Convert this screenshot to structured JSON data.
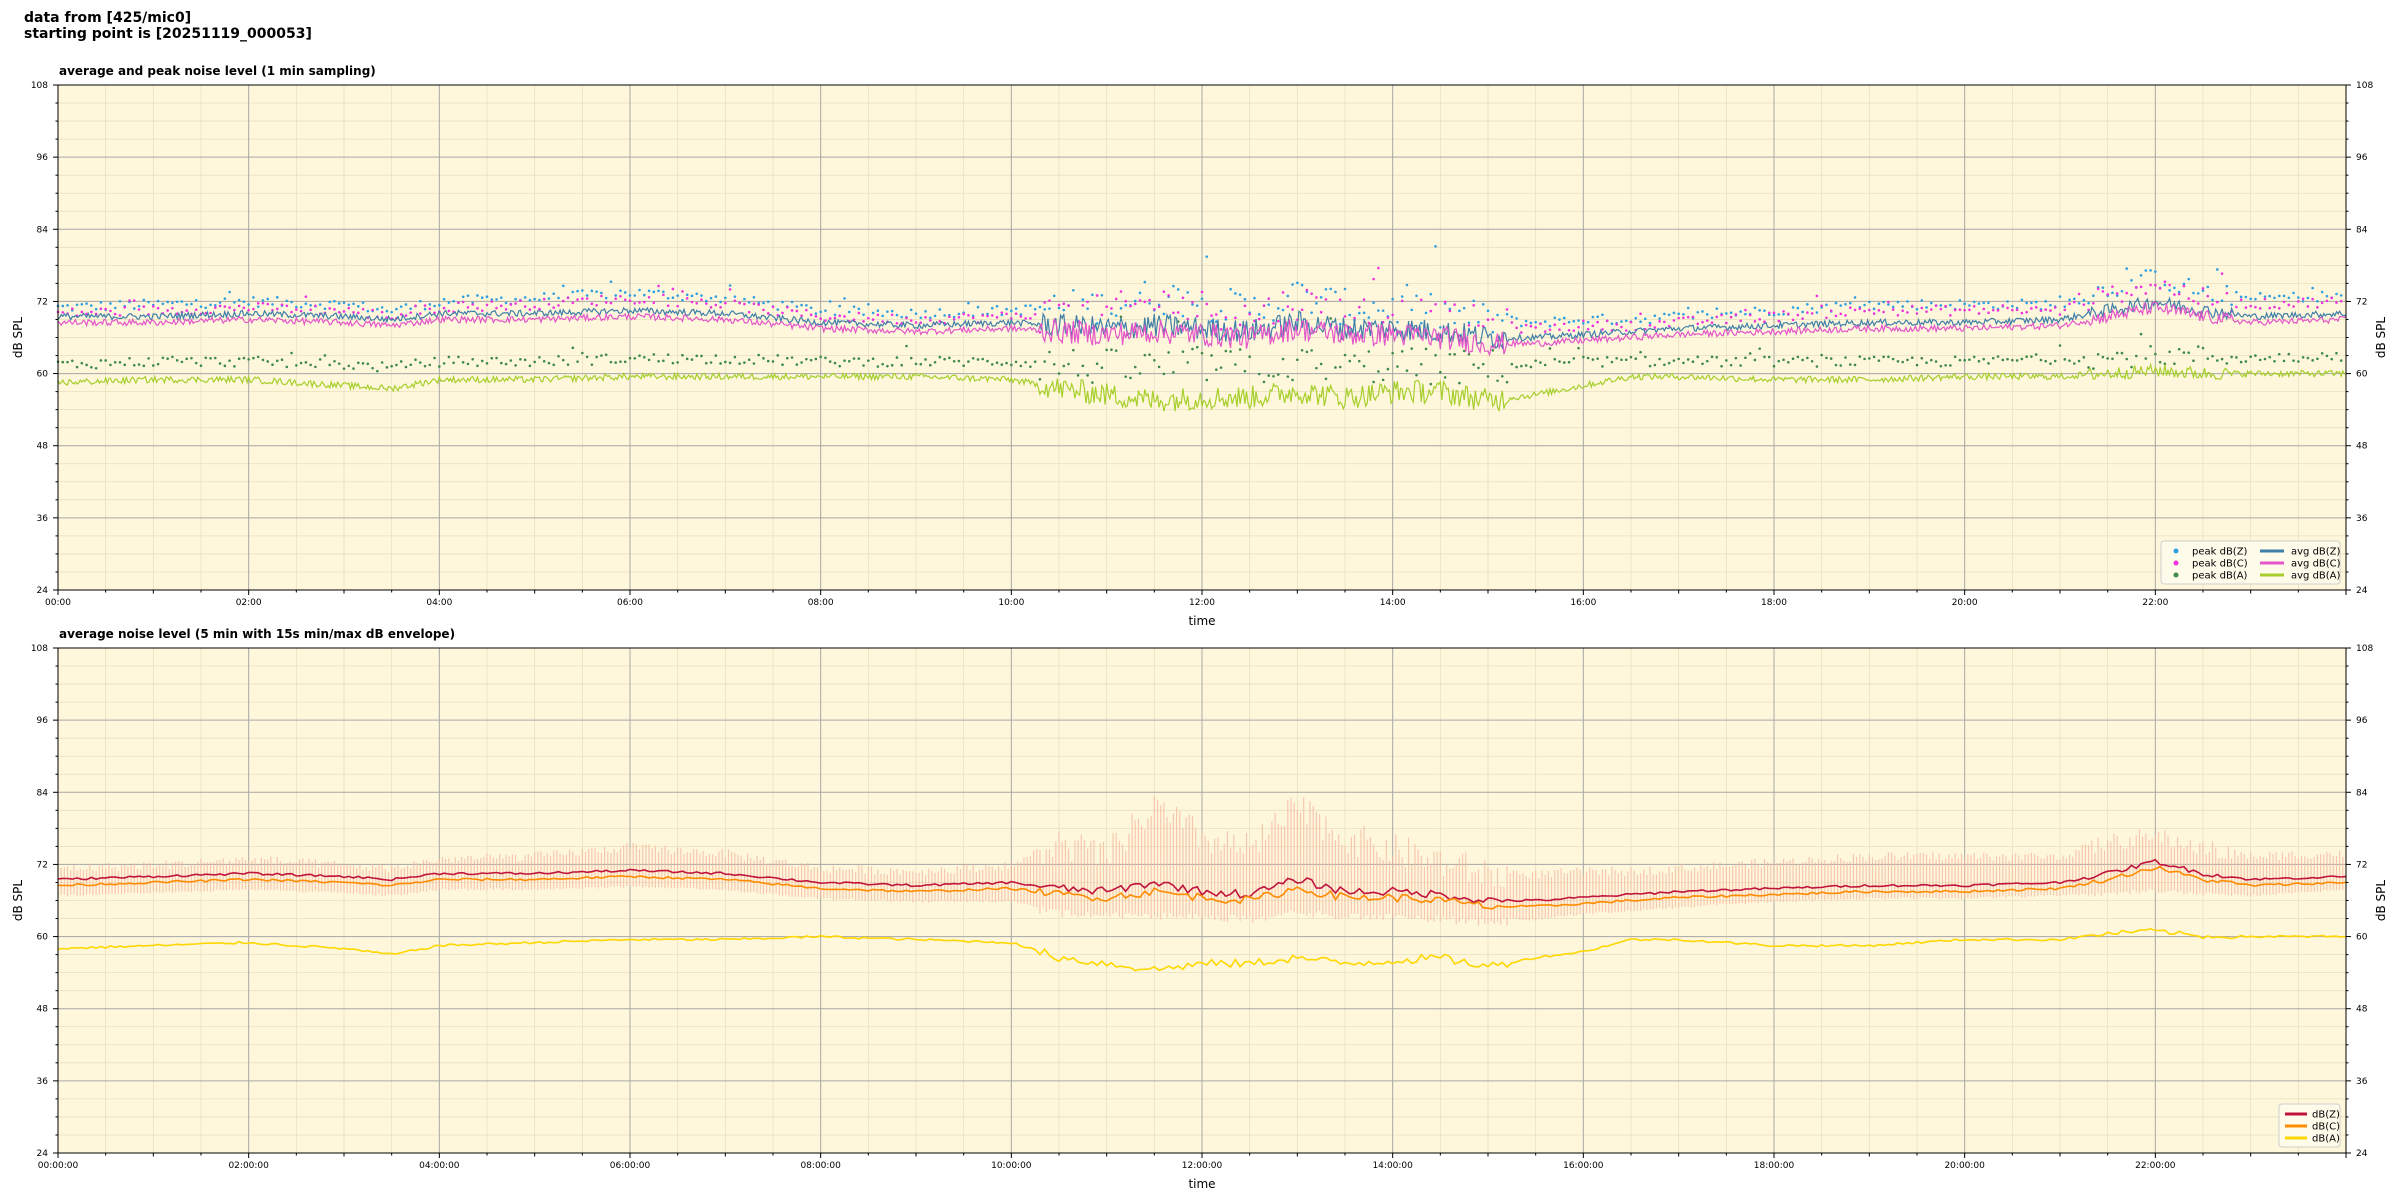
{
  "header": {
    "line1": "data from [425/mic0]",
    "line2": "starting point is [20251119_000053]"
  },
  "colors": {
    "plot_bg": "#fff7dc",
    "grid_major": "#a9a9a9",
    "grid_minor": "#e8dfbd",
    "peak_z": "#2e9fe0",
    "peak_c": "#ee33dd",
    "peak_a": "#3d8a4a",
    "avg_z": "#3f7fa8",
    "avg_c": "#e455c9",
    "avg_a": "#a6cf2c",
    "env": "#f3b8a0",
    "line_z": "#c0143c",
    "line_c": "#ff8c00",
    "line_a": "#ffd700"
  },
  "chart_data": [
    {
      "type": "scatter",
      "title": "average and peak noise level (1 min sampling)",
      "xlabel": "time",
      "ylabel": "dB SPL",
      "ylabel_right": "dB SPL",
      "xlim": [
        0,
        24
      ],
      "ylim": [
        24,
        108
      ],
      "yticks": [
        24,
        36,
        48,
        60,
        72,
        84,
        96,
        108
      ],
      "xtick_labels": [
        "00:00",
        "02:00",
        "04:00",
        "06:00",
        "08:00",
        "10:00",
        "12:00",
        "14:00",
        "16:00",
        "18:00",
        "20:00",
        "22:00"
      ],
      "grid": true,
      "legend_position": "lower right",
      "x_hours": [
        0,
        1,
        2,
        3,
        3.5,
        4,
        5,
        6,
        7,
        8,
        9,
        10,
        10.5,
        11,
        11.5,
        12,
        12.5,
        13,
        13.5,
        14,
        14.5,
        15,
        15.5,
        16,
        16.5,
        17,
        18,
        19,
        20,
        21,
        21.5,
        22,
        22.5,
        23,
        24
      ],
      "series": [
        {
          "name": "peak dB(Z)",
          "kind": "points",
          "color_key": "peak_z",
          "values": [
            71,
            71.5,
            72,
            71.5,
            70.5,
            72,
            72.5,
            73.5,
            72.5,
            70.5,
            70,
            70.5,
            71,
            71,
            73,
            72,
            70.5,
            73,
            71,
            71,
            70,
            69,
            68.5,
            69,
            69,
            69.5,
            70.5,
            71.5,
            71.5,
            71.5,
            74,
            76,
            73.5,
            72.5,
            73
          ]
        },
        {
          "name": "peak dB(C)",
          "kind": "points",
          "color_key": "peak_c",
          "values": [
            70,
            70.5,
            71,
            70.5,
            69.5,
            71,
            71.5,
            72.5,
            71.5,
            69.5,
            69,
            69.5,
            70,
            70,
            72,
            71,
            69.5,
            72,
            70,
            70,
            69,
            68,
            67.5,
            68,
            68,
            68.5,
            69.5,
            70.5,
            70.5,
            70.5,
            73,
            75,
            72.5,
            71.5,
            72
          ]
        },
        {
          "name": "peak dB(A)",
          "kind": "points",
          "color_key": "peak_a",
          "values": [
            61.5,
            62,
            62,
            61.5,
            61,
            62,
            62,
            62.5,
            62.5,
            62,
            62,
            62,
            61.5,
            61,
            61,
            61.5,
            61,
            61.5,
            61,
            61.5,
            61,
            61,
            61.5,
            62,
            62,
            62,
            62,
            62,
            62,
            62.5,
            62.5,
            63,
            63,
            62.5,
            63
          ]
        },
        {
          "name": "avg dB(Z)",
          "kind": "line",
          "color_key": "avg_z",
          "values": [
            69.5,
            69.5,
            70,
            69.5,
            69,
            70,
            70,
            70.5,
            70,
            68.5,
            68,
            68.5,
            68,
            67.5,
            68,
            67.5,
            67,
            68.5,
            67.5,
            67.5,
            67,
            66,
            66,
            66.5,
            67,
            67.5,
            68,
            68.5,
            68.5,
            69,
            70.5,
            72,
            70.5,
            69.5,
            70
          ]
        },
        {
          "name": "avg dB(C)",
          "kind": "line",
          "color_key": "avg_c",
          "values": [
            68.5,
            68.5,
            69,
            68.5,
            68,
            69,
            69,
            69.5,
            69,
            67.5,
            67,
            67.5,
            67,
            66.5,
            67,
            66.5,
            66,
            67.5,
            66.5,
            66.5,
            66,
            65,
            65,
            65.5,
            66,
            66.5,
            67,
            67.5,
            67.5,
            68,
            69.5,
            71,
            69.5,
            68.5,
            69
          ]
        },
        {
          "name": "avg dB(A)",
          "kind": "line",
          "color_key": "avg_a",
          "values": [
            58.5,
            59,
            59,
            58,
            57.5,
            59,
            59,
            59.5,
            59.5,
            59.5,
            59.5,
            59,
            57.5,
            56.5,
            55.5,
            56,
            56,
            57,
            56,
            57,
            57,
            55.5,
            56.5,
            58,
            59.5,
            59.5,
            59,
            59,
            59.5,
            59.5,
            60,
            60.5,
            60,
            60,
            60
          ]
        }
      ]
    },
    {
      "type": "line",
      "title": "average noise level (5 min with 15s min/max dB envelope)",
      "xlabel": "time",
      "ylabel": "dB SPL",
      "ylabel_right": "dB SPL",
      "xlim": [
        0,
        24
      ],
      "ylim": [
        24,
        108
      ],
      "yticks": [
        24,
        36,
        48,
        60,
        72,
        84,
        96,
        108
      ],
      "xtick_labels": [
        "00:00:00",
        "02:00:00",
        "04:00:00",
        "06:00:00",
        "08:00:00",
        "10:00:00",
        "12:00:00",
        "14:00:00",
        "16:00:00",
        "18:00:00",
        "20:00:00",
        "22:00:00"
      ],
      "grid": true,
      "legend_position": "lower right",
      "x_hours": [
        0,
        1,
        2,
        3,
        3.5,
        4,
        5,
        6,
        7,
        8,
        9,
        10,
        10.5,
        11,
        11.5,
        12,
        12.5,
        13,
        13.5,
        14,
        14.5,
        15,
        15.5,
        16,
        16.5,
        17,
        18,
        19,
        20,
        21,
        21.5,
        22,
        22.5,
        23,
        24
      ],
      "envelope": {
        "color_key": "env",
        "min": [
          67,
          67.5,
          68,
          67.5,
          67,
          68,
          68,
          68.5,
          68,
          66.5,
          66,
          66,
          64.5,
          64,
          64,
          64,
          63.5,
          64.5,
          64,
          64,
          63.5,
          63,
          63,
          64,
          64.5,
          65,
          66,
          66.5,
          66.5,
          67,
          67.5,
          68,
          67.5,
          67,
          68
        ],
        "max": [
          71.5,
          72,
          73,
          72,
          71.5,
          73,
          73.5,
          75,
          74,
          71.5,
          71,
          72,
          76,
          74,
          82,
          77,
          75,
          82,
          77,
          75,
          73,
          71,
          70.5,
          71,
          71,
          71.5,
          72.5,
          73.5,
          73.5,
          73.5,
          76,
          77,
          75,
          73.5,
          74
        ]
      },
      "series": [
        {
          "name": "dB(Z)",
          "color_key": "line_z",
          "values": [
            69.5,
            70,
            70.5,
            70,
            69.5,
            70.5,
            70.5,
            71,
            70.5,
            69,
            68.5,
            69,
            68,
            67.5,
            69,
            67.5,
            67,
            69.5,
            67.5,
            67.5,
            67,
            66,
            66,
            66.5,
            67,
            67.5,
            68,
            68.5,
            68.5,
            69,
            70.5,
            72.5,
            70.5,
            69.5,
            70
          ]
        },
        {
          "name": "dB(C)",
          "color_key": "line_c",
          "values": [
            68.5,
            69,
            69.5,
            69,
            68.5,
            69.5,
            69.5,
            70,
            69.5,
            68,
            67.5,
            68,
            67,
            66.5,
            67.5,
            66.5,
            66,
            68,
            66.5,
            66.5,
            66,
            65,
            65,
            65.5,
            66,
            66.5,
            67,
            67.5,
            67.5,
            68,
            69.5,
            71.5,
            69.5,
            68.5,
            69
          ]
        },
        {
          "name": "dB(A)",
          "color_key": "line_a",
          "values": [
            58,
            58.5,
            59,
            58,
            57,
            58.5,
            59,
            59.5,
            59.5,
            60,
            59.5,
            59,
            56.5,
            55.5,
            54.5,
            55.5,
            55.5,
            56.5,
            55.5,
            56,
            56.5,
            55,
            56.5,
            57.5,
            59.5,
            59.5,
            58.5,
            58.5,
            59.5,
            59.5,
            60.5,
            61,
            60,
            60,
            60
          ]
        }
      ]
    }
  ]
}
